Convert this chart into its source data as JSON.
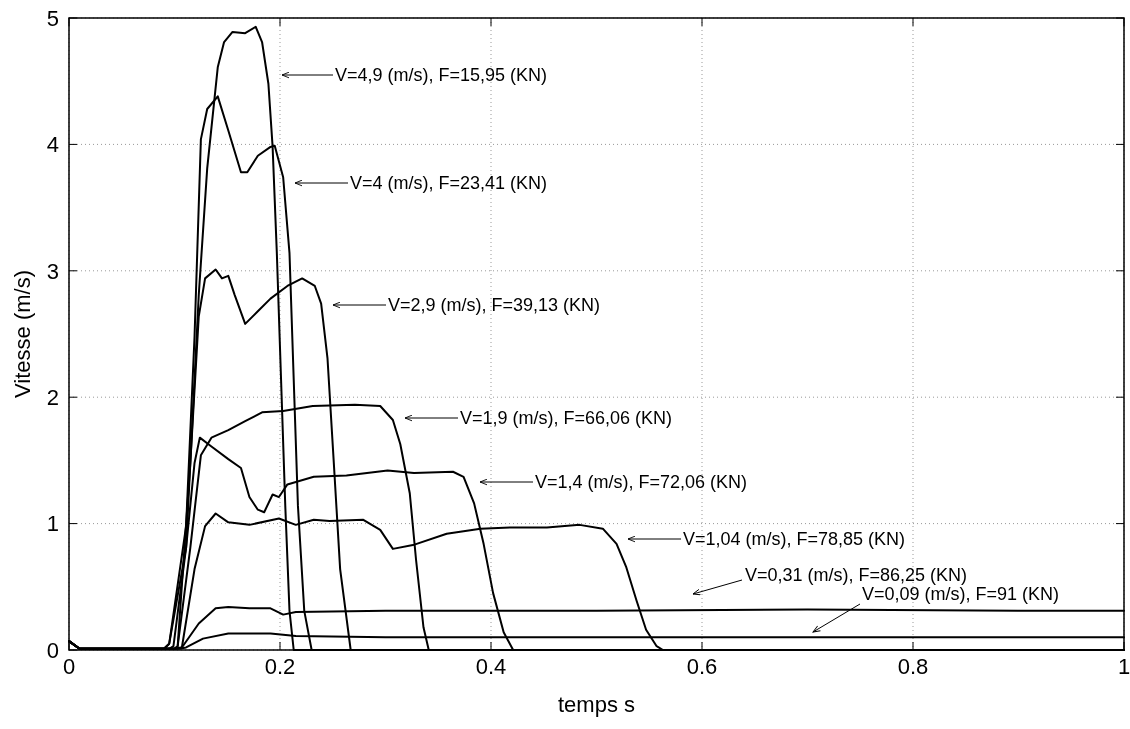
{
  "chart_data": {
    "type": "line",
    "xlabel": "temps s",
    "ylabel": "Vitesse (m/s)",
    "xlim": [
      0,
      1
    ],
    "ylim": [
      0,
      5
    ],
    "xticks": [
      0,
      0.2,
      0.4,
      0.6,
      0.8,
      1
    ],
    "yticks": [
      0,
      1,
      2,
      3,
      4,
      5
    ],
    "grid": true,
    "line_style": "solid",
    "marker": "none",
    "series": [
      {
        "color": "#000000",
        "x": [
          0,
          0.01,
          0.09,
          0.095,
          0.111,
          0.123,
          0.131,
          0.141,
          0.147,
          0.155,
          0.167,
          0.177,
          0.183,
          0.189,
          0.193,
          0.197,
          0.201,
          0.205,
          0.209,
          0.213,
          1
        ],
        "values": [
          0.07,
          0.01,
          0.01,
          0.05,
          0.81,
          2.81,
          3.81,
          4.61,
          4.81,
          4.89,
          4.88,
          4.93,
          4.81,
          4.48,
          3.98,
          3.14,
          2.14,
          1.14,
          0.31,
          0,
          0
        ]
      },
      {
        "color": "#000000",
        "x": [
          0,
          0.01,
          0.09,
          0.095,
          0.111,
          0.119,
          0.125,
          0.131,
          0.141,
          0.151,
          0.163,
          0.169,
          0.179,
          0.191,
          0.195,
          0.203,
          0.209,
          0.213,
          0.217,
          0.223,
          0.23,
          1
        ],
        "values": [
          0.07,
          0.01,
          0.01,
          0.05,
          0.98,
          2.48,
          4.04,
          4.28,
          4.38,
          4.11,
          3.78,
          3.78,
          3.91,
          3.98,
          3.99,
          3.74,
          3.14,
          2.14,
          1.14,
          0.31,
          0,
          0
        ]
      },
      {
        "color": "#000000",
        "x": [
          0,
          0.01,
          0.1,
          0.103,
          0.115,
          0.123,
          0.129,
          0.139,
          0.145,
          0.151,
          0.157,
          0.167,
          0.179,
          0.191,
          0.207,
          0.221,
          0.233,
          0.239,
          0.245,
          0.251,
          0.257,
          0.267,
          1
        ],
        "values": [
          0.07,
          0.01,
          0.01,
          0.03,
          1.48,
          2.64,
          2.94,
          3.01,
          2.94,
          2.96,
          2.81,
          2.58,
          2.68,
          2.78,
          2.88,
          2.94,
          2.88,
          2.74,
          2.31,
          1.48,
          0.64,
          0,
          0
        ]
      },
      {
        "color": "#000000",
        "x": [
          0,
          0.01,
          0.1,
          0.103,
          0.115,
          0.125,
          0.135,
          0.151,
          0.167,
          0.183,
          0.203,
          0.231,
          0.271,
          0.295,
          0.307,
          0.314,
          0.323,
          0.329,
          0.336,
          0.341,
          1
        ],
        "values": [
          0.07,
          0.01,
          0.01,
          0.03,
          0.81,
          1.54,
          1.68,
          1.74,
          1.81,
          1.88,
          1.89,
          1.93,
          1.94,
          1.93,
          1.82,
          1.63,
          1.24,
          0.71,
          0.18,
          0,
          0
        ]
      },
      {
        "color": "#000000",
        "x": [
          0,
          0.01,
          0.095,
          0.099,
          0.111,
          0.119,
          0.124,
          0.135,
          0.151,
          0.163,
          0.171,
          0.179,
          0.185,
          0.193,
          0.199,
          0.207,
          0.232,
          0.263,
          0.302,
          0.327,
          0.364,
          0.374,
          0.384,
          0.393,
          0.402,
          0.412,
          0.421,
          1
        ],
        "values": [
          0.07,
          0.01,
          0.01,
          0.03,
          0.81,
          1.48,
          1.68,
          1.61,
          1.51,
          1.44,
          1.21,
          1.11,
          1.09,
          1.23,
          1.21,
          1.31,
          1.37,
          1.38,
          1.42,
          1.4,
          1.41,
          1.37,
          1.16,
          0.84,
          0.45,
          0.14,
          0,
          0
        ]
      },
      {
        "color": "#000000",
        "x": [
          0,
          0.01,
          0.1,
          0.107,
          0.119,
          0.129,
          0.139,
          0.151,
          0.171,
          0.199,
          0.215,
          0.232,
          0.247,
          0.279,
          0.295,
          0.307,
          0.326,
          0.358,
          0.39,
          0.421,
          0.453,
          0.484,
          0.506,
          0.519,
          0.528,
          0.538,
          0.547,
          0.557,
          0.563,
          1
        ],
        "values": [
          0.07,
          0.01,
          0.01,
          0.02,
          0.64,
          0.98,
          1.08,
          1.01,
          0.99,
          1.04,
          0.99,
          1.03,
          1.02,
          1.03,
          0.95,
          0.8,
          0.83,
          0.92,
          0.96,
          0.97,
          0.97,
          0.99,
          0.96,
          0.84,
          0.66,
          0.39,
          0.16,
          0.03,
          0,
          0
        ]
      },
      {
        "color": "#000000",
        "x": [
          0,
          0.01,
          0.1,
          0.107,
          0.123,
          0.139,
          0.151,
          0.171,
          0.191,
          0.203,
          0.215,
          0.3,
          0.5,
          0.7,
          0.9,
          1
        ],
        "values": [
          0.07,
          0.01,
          0.01,
          0.02,
          0.21,
          0.33,
          0.34,
          0.33,
          0.33,
          0.28,
          0.3,
          0.31,
          0.31,
          0.32,
          0.31,
          0.31
        ]
      },
      {
        "color": "#000000",
        "x": [
          0,
          0.01,
          0.105,
          0.111,
          0.127,
          0.151,
          0.191,
          0.215,
          0.3,
          0.5,
          0.7,
          0.9,
          1
        ],
        "values": [
          0.07,
          0.01,
          0.01,
          0.02,
          0.09,
          0.13,
          0.13,
          0.11,
          0.1,
          0.1,
          0.1,
          0.1,
          0.1
        ]
      }
    ],
    "annotations": [
      "V=4,9 (m/s), F=15,95 (KN)",
      "V=4 (m/s), F=23,41 (KN)",
      "V=2,9 (m/s), F=39,13 (KN)",
      "V=1,9 (m/s), F=66,06 (KN)",
      "V=1,4 (m/s), F=72,06 (KN)",
      "V=1,04 (m/s), F=78,85 (KN)",
      "V=0,31 (m/s), F=86,25 (KN)",
      "V=0,09 (m/s), F=91 (KN)"
    ]
  }
}
